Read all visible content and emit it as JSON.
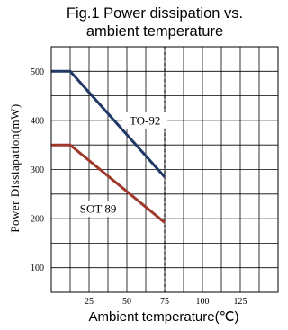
{
  "chart_data": {
    "type": "line",
    "title_lines": [
      "Fig.1 Power dissipation vs.",
      "ambient temperature"
    ],
    "xlabel": "Ambient temperature(℃)",
    "ylabel": "Power Dissiapation(mW)",
    "xlim": [
      0,
      150
    ],
    "ylim": [
      50,
      550
    ],
    "x_grid_step": 12.5,
    "y_grid_step": 50,
    "grid": true,
    "x_ticks": [
      {
        "value": 25,
        "label": "25"
      },
      {
        "value": 50,
        "label": "50"
      },
      {
        "value": 75,
        "label": "75"
      },
      {
        "value": 100,
        "label": "100"
      },
      {
        "value": 125,
        "label": "125"
      }
    ],
    "y_ticks": [
      {
        "value": 100,
        "label": "100"
      },
      {
        "value": 200,
        "label": "200"
      },
      {
        "value": 300,
        "label": "300"
      },
      {
        "value": 400,
        "label": "400"
      },
      {
        "value": 500,
        "label": "500"
      }
    ],
    "vline": {
      "x": 75,
      "style": "dashed"
    },
    "series": [
      {
        "name": "TO-92",
        "color": "#1f3864",
        "x": [
          0,
          12.5,
          75
        ],
        "y": [
          500,
          500,
          285
        ],
        "label_at": [
          62,
          400
        ]
      },
      {
        "name": "SOT-89",
        "color": "#a0392c",
        "x": [
          0,
          12.5,
          75
        ],
        "y": [
          350,
          350,
          192
        ],
        "label_at": [
          31,
          220
        ]
      }
    ]
  }
}
